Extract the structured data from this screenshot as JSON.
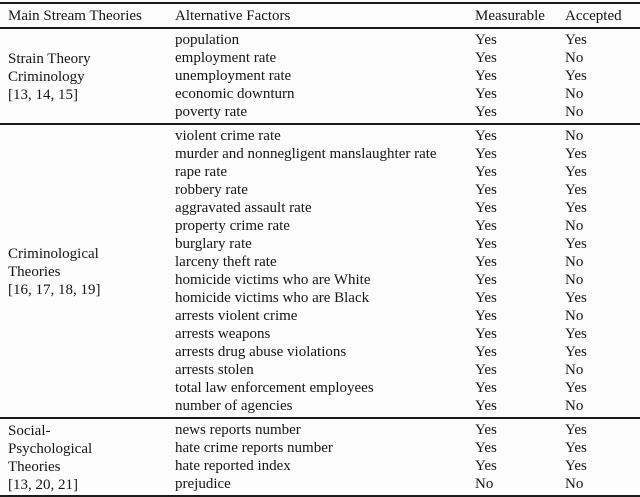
{
  "ink_color": "#1b1b1b",
  "background_color": "#fdfdfd",
  "table": {
    "columns": [
      "Main Stream Theories",
      "Alternative Factors",
      "Measurable",
      "Accepted"
    ],
    "groups": [
      {
        "theory_lines": [
          "Strain Theory",
          "Criminology",
          "[13, 14, 15]"
        ],
        "rows": [
          {
            "factor": "population",
            "measurable": "Yes",
            "accepted": "Yes"
          },
          {
            "factor": "employment rate",
            "measurable": "Yes",
            "accepted": "No"
          },
          {
            "factor": "unemployment rate",
            "measurable": "Yes",
            "accepted": "Yes"
          },
          {
            "factor": "economic downturn",
            "measurable": "Yes",
            "accepted": "No"
          },
          {
            "factor": "poverty rate",
            "measurable": "Yes",
            "accepted": "No"
          }
        ]
      },
      {
        "theory_lines": [
          "Criminological",
          "Theories",
          "[16, 17, 18, 19]"
        ],
        "rows": [
          {
            "factor": "violent crime rate",
            "measurable": "Yes",
            "accepted": "No"
          },
          {
            "factor": "murder and nonnegligent manslaughter rate",
            "measurable": "Yes",
            "accepted": "Yes"
          },
          {
            "factor": "rape rate",
            "measurable": "Yes",
            "accepted": "Yes"
          },
          {
            "factor": "robbery rate",
            "measurable": "Yes",
            "accepted": "Yes"
          },
          {
            "factor": "aggravated assault rate",
            "measurable": "Yes",
            "accepted": "Yes"
          },
          {
            "factor": "property crime rate",
            "measurable": "Yes",
            "accepted": "No"
          },
          {
            "factor": "burglary rate",
            "measurable": "Yes",
            "accepted": "Yes"
          },
          {
            "factor": "larceny theft rate",
            "measurable": "Yes",
            "accepted": "No"
          },
          {
            "factor": "homicide victims who are White",
            "measurable": "Yes",
            "accepted": "No"
          },
          {
            "factor": "homicide victims who are Black",
            "measurable": "Yes",
            "accepted": "Yes"
          },
          {
            "factor": "arrests violent crime",
            "measurable": "Yes",
            "accepted": "No"
          },
          {
            "factor": "arrests weapons",
            "measurable": "Yes",
            "accepted": "Yes"
          },
          {
            "factor": "arrests drug abuse violations",
            "measurable": "Yes",
            "accepted": "Yes"
          },
          {
            "factor": "arrests stolen",
            "measurable": "Yes",
            "accepted": "No"
          },
          {
            "factor": "total law enforcement employees",
            "measurable": "Yes",
            "accepted": "Yes"
          },
          {
            "factor": "number of agencies",
            "measurable": "Yes",
            "accepted": "No"
          }
        ]
      },
      {
        "theory_lines": [
          "Social-",
          "Psychological",
          "Theories",
          "[13, 20, 21]"
        ],
        "rows": [
          {
            "factor": "news reports number",
            "measurable": "Yes",
            "accepted": "Yes"
          },
          {
            "factor": "hate crime reports number",
            "measurable": "Yes",
            "accepted": "Yes"
          },
          {
            "factor": "hate reported index",
            "measurable": "Yes",
            "accepted": "Yes"
          },
          {
            "factor": "prejudice",
            "measurable": "No",
            "accepted": "No"
          }
        ]
      }
    ]
  }
}
